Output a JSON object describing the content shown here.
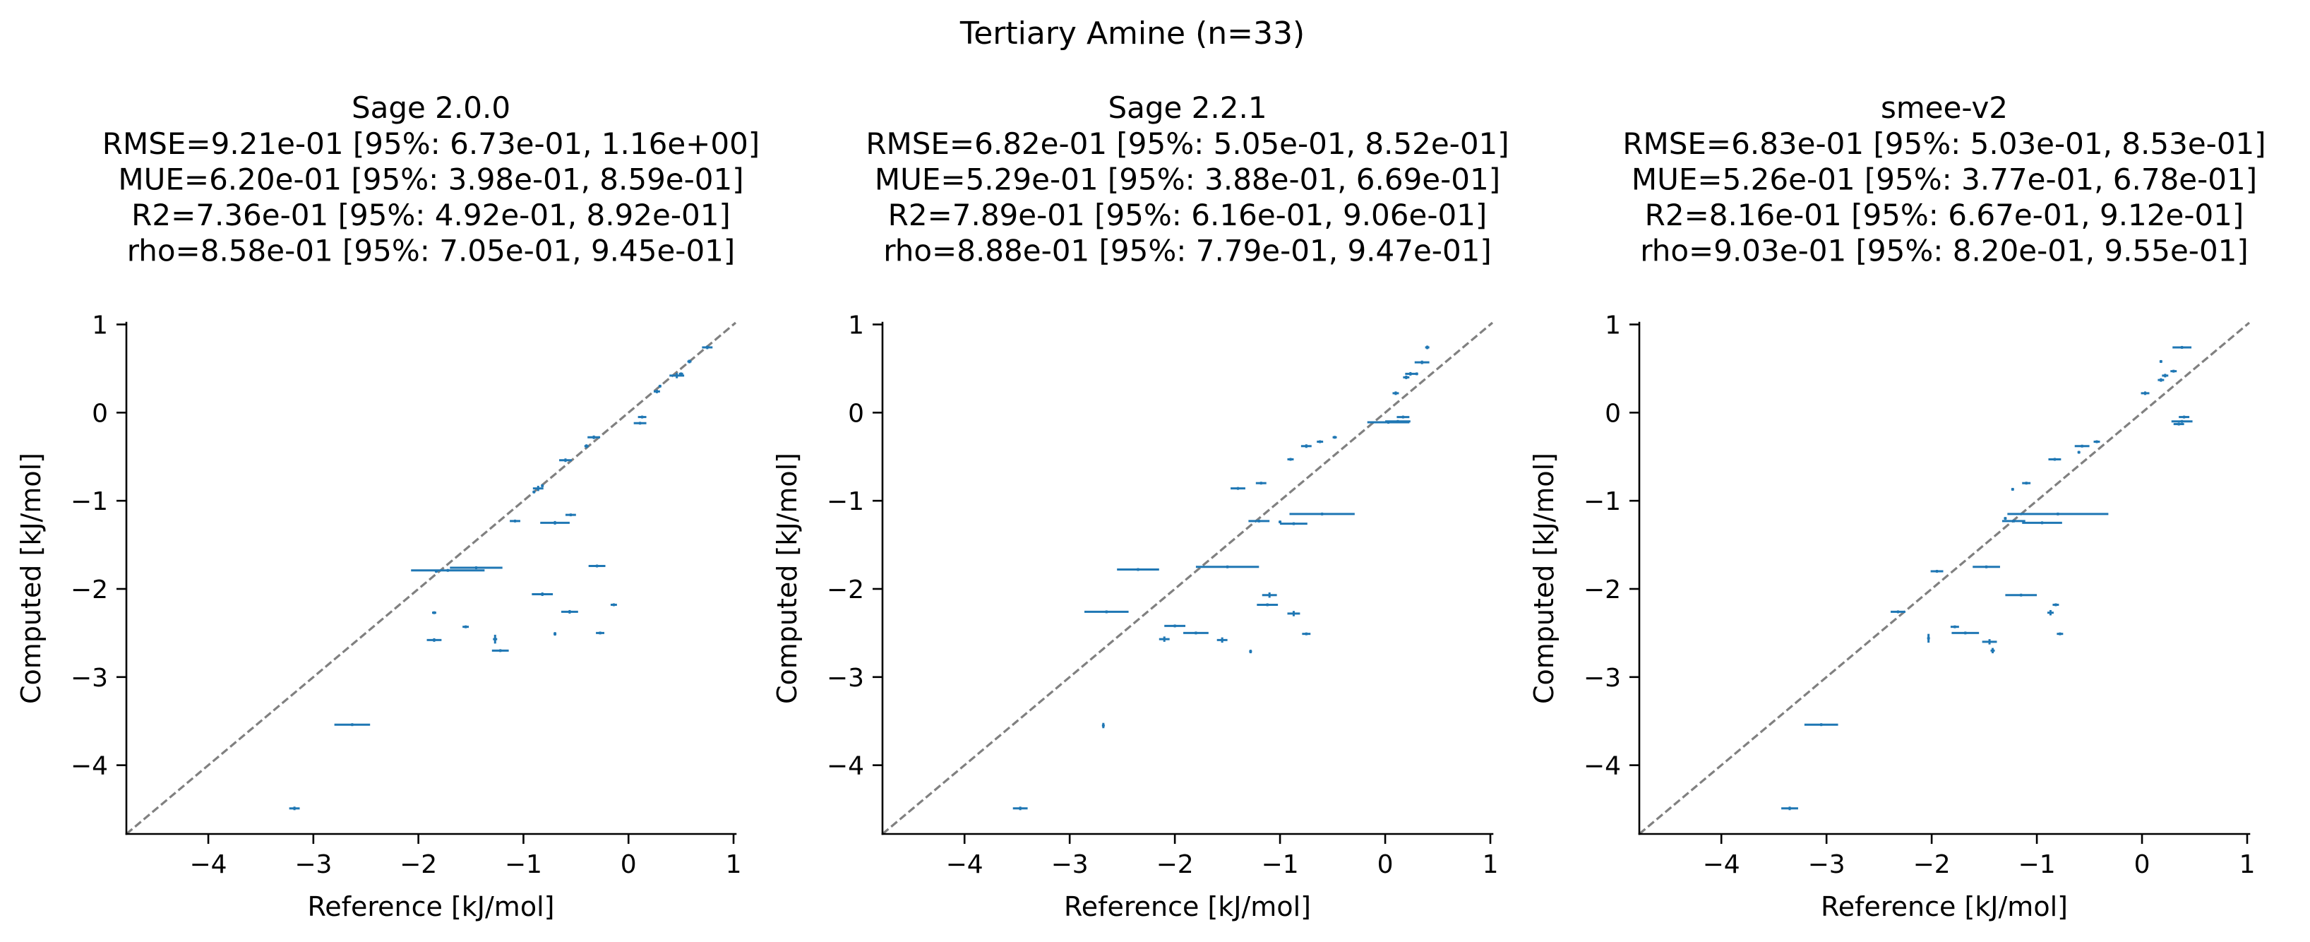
{
  "figure": {
    "suptitle": "Tertiary Amine (n=33)"
  },
  "colors": {
    "series": "#1f77b4",
    "identity_line": "#808080",
    "axis": "#000000"
  },
  "chart_data": [
    {
      "type": "scatter",
      "title": "Sage 2.0.0",
      "stats": [
        "RMSE=9.21e-01 [95%: 6.73e-01, 1.16e+00]",
        "MUE=6.20e-01 [95%: 3.98e-01, 8.59e-01]",
        "R2=7.36e-01 [95%: 4.92e-01, 8.92e-01]",
        "rho=8.58e-01 [95%: 7.05e-01, 9.45e-01]"
      ],
      "xlabel": "Reference [kJ/mol]",
      "ylabel": "Computed [kJ/mol]",
      "xlim": [
        -4.78,
        1.02
      ],
      "ylim": [
        -4.78,
        1.02
      ],
      "xticks": [
        -4,
        -3,
        -2,
        -1,
        0,
        1
      ],
      "yticks": [
        -4,
        -3,
        -2,
        -1,
        0,
        1
      ],
      "identity_line": true,
      "points": [
        {
          "x": -3.18,
          "y": -4.49,
          "xerr": 0.05,
          "yerr": 0.02
        },
        {
          "x": -2.63,
          "y": -3.54,
          "xerr": 0.17,
          "yerr": 0.01
        },
        {
          "x": -1.72,
          "y": -1.79,
          "xerr": 0.35,
          "yerr": 0.01
        },
        {
          "x": -1.45,
          "y": -1.76,
          "xerr": 0.25,
          "yerr": 0.01
        },
        {
          "x": -1.85,
          "y": -2.58,
          "xerr": 0.07,
          "yerr": 0.02
        },
        {
          "x": -1.85,
          "y": -2.27,
          "xerr": 0.02,
          "yerr": 0.01
        },
        {
          "x": -1.55,
          "y": -2.43,
          "xerr": 0.03,
          "yerr": 0.01
        },
        {
          "x": -1.27,
          "y": -2.57,
          "xerr": 0.02,
          "yerr": 0.05
        },
        {
          "x": -1.22,
          "y": -2.7,
          "xerr": 0.08,
          "yerr": 0.01
        },
        {
          "x": -0.82,
          "y": -2.06,
          "xerr": 0.1,
          "yerr": 0.02
        },
        {
          "x": -0.7,
          "y": -2.51,
          "xerr": 0.01,
          "yerr": 0.02
        },
        {
          "x": -0.56,
          "y": -2.26,
          "xerr": 0.08,
          "yerr": 0.02
        },
        {
          "x": -0.27,
          "y": -2.5,
          "xerr": 0.04,
          "yerr": 0.01
        },
        {
          "x": -0.14,
          "y": -2.18,
          "xerr": 0.03,
          "yerr": 0.01
        },
        {
          "x": -0.3,
          "y": -1.74,
          "xerr": 0.08,
          "yerr": 0.01
        },
        {
          "x": -0.55,
          "y": -1.16,
          "xerr": 0.05,
          "yerr": 0.01
        },
        {
          "x": -0.7,
          "y": -1.25,
          "xerr": 0.14,
          "yerr": 0.02
        },
        {
          "x": -1.08,
          "y": -1.23,
          "xerr": 0.05,
          "yerr": 0.01
        },
        {
          "x": -0.86,
          "y": -0.86,
          "xerr": 0.05,
          "yerr": 0.03
        },
        {
          "x": -0.6,
          "y": -0.54,
          "xerr": 0.06,
          "yerr": 0.02
        },
        {
          "x": -0.33,
          "y": -0.28,
          "xerr": 0.06,
          "yerr": 0.02
        },
        {
          "x": -0.4,
          "y": -0.38,
          "xerr": 0.02,
          "yerr": 0.02
        },
        {
          "x": 0.11,
          "y": -0.12,
          "xerr": 0.06,
          "yerr": 0.01
        },
        {
          "x": 0.13,
          "y": -0.05,
          "xerr": 0.04,
          "yerr": 0.01
        },
        {
          "x": 0.27,
          "y": 0.24,
          "xerr": 0.03,
          "yerr": 0.02
        },
        {
          "x": 0.46,
          "y": 0.42,
          "xerr": 0.07,
          "yerr": 0.03
        },
        {
          "x": 0.58,
          "y": 0.58,
          "xerr": 0.02,
          "yerr": 0.02
        },
        {
          "x": 0.75,
          "y": 0.74,
          "xerr": 0.05,
          "yerr": 0.02
        },
        {
          "x": 0.5,
          "y": 0.44,
          "xerr": 0.02,
          "yerr": 0.01
        },
        {
          "x": -1.83,
          "y": -1.8,
          "xerr": 0.01,
          "yerr": 0.01
        },
        {
          "x": -0.9,
          "y": -0.9,
          "xerr": 0.01,
          "yerr": 0.01
        },
        {
          "x": -0.82,
          "y": -0.83,
          "xerr": 0.01,
          "yerr": 0.01
        },
        {
          "x": 0.3,
          "y": 0.3,
          "xerr": 0.01,
          "yerr": 0.01
        }
      ]
    },
    {
      "type": "scatter",
      "title": "Sage 2.2.1",
      "stats": [
        "RMSE=6.82e-01 [95%: 5.05e-01, 8.52e-01]",
        "MUE=5.29e-01 [95%: 3.88e-01, 6.69e-01]",
        "R2=7.89e-01 [95%: 6.16e-01, 9.06e-01]",
        "rho=8.88e-01 [95%: 7.79e-01, 9.47e-01]"
      ],
      "xlabel": "Reference [kJ/mol]",
      "ylabel": "Computed [kJ/mol]",
      "xlim": [
        -4.78,
        1.02
      ],
      "ylim": [
        -4.78,
        1.02
      ],
      "xticks": [
        -4,
        -3,
        -2,
        -1,
        0,
        1
      ],
      "yticks": [
        -4,
        -3,
        -2,
        -1,
        0,
        1
      ],
      "identity_line": true,
      "points": [
        {
          "x": -3.47,
          "y": -4.49,
          "xerr": 0.07,
          "yerr": 0.02
        },
        {
          "x": -2.68,
          "y": -3.55,
          "xerr": 0.01,
          "yerr": 0.03
        },
        {
          "x": -2.65,
          "y": -2.26,
          "xerr": 0.21,
          "yerr": 0.01
        },
        {
          "x": -2.35,
          "y": -1.78,
          "xerr": 0.2,
          "yerr": 0.01
        },
        {
          "x": -2.1,
          "y": -2.57,
          "xerr": 0.05,
          "yerr": 0.03
        },
        {
          "x": -2.0,
          "y": -2.42,
          "xerr": 0.1,
          "yerr": 0.01
        },
        {
          "x": -1.8,
          "y": -2.5,
          "xerr": 0.12,
          "yerr": 0.01
        },
        {
          "x": -1.5,
          "y": -1.75,
          "xerr": 0.3,
          "yerr": 0.01
        },
        {
          "x": -1.55,
          "y": -2.58,
          "xerr": 0.05,
          "yerr": 0.03
        },
        {
          "x": -1.28,
          "y": -2.71,
          "xerr": 0.01,
          "yerr": 0.02
        },
        {
          "x": -1.1,
          "y": -2.07,
          "xerr": 0.07,
          "yerr": 0.03
        },
        {
          "x": -1.12,
          "y": -2.18,
          "xerr": 0.1,
          "yerr": 0.01
        },
        {
          "x": -0.87,
          "y": -2.28,
          "xerr": 0.06,
          "yerr": 0.03
        },
        {
          "x": -0.75,
          "y": -2.51,
          "xerr": 0.04,
          "yerr": 0.01
        },
        {
          "x": -0.87,
          "y": -1.26,
          "xerr": 0.13,
          "yerr": 0.01
        },
        {
          "x": -0.6,
          "y": -1.15,
          "xerr": 0.31,
          "yerr": 0.01
        },
        {
          "x": -1.2,
          "y": -1.23,
          "xerr": 0.1,
          "yerr": 0.01
        },
        {
          "x": -1.4,
          "y": -0.86,
          "xerr": 0.07,
          "yerr": 0.01
        },
        {
          "x": -1.18,
          "y": -0.8,
          "xerr": 0.05,
          "yerr": 0.01
        },
        {
          "x": -0.9,
          "y": -0.53,
          "xerr": 0.03,
          "yerr": 0.01
        },
        {
          "x": -0.75,
          "y": -0.38,
          "xerr": 0.05,
          "yerr": 0.02
        },
        {
          "x": -0.62,
          "y": -0.33,
          "xerr": 0.03,
          "yerr": 0.01
        },
        {
          "x": -0.48,
          "y": -0.28,
          "xerr": 0.02,
          "yerr": 0.01
        },
        {
          "x": 0.03,
          "y": -0.11,
          "xerr": 0.2,
          "yerr": 0.01
        },
        {
          "x": 0.12,
          "y": -0.1,
          "xerr": 0.12,
          "yerr": 0.01
        },
        {
          "x": 0.17,
          "y": -0.05,
          "xerr": 0.06,
          "yerr": 0.01
        },
        {
          "x": 0.1,
          "y": 0.22,
          "xerr": 0.03,
          "yerr": 0.02
        },
        {
          "x": 0.2,
          "y": 0.4,
          "xerr": 0.03,
          "yerr": 0.02
        },
        {
          "x": 0.24,
          "y": 0.44,
          "xerr": 0.05,
          "yerr": 0.02
        },
        {
          "x": 0.35,
          "y": 0.57,
          "xerr": 0.07,
          "yerr": 0.02
        },
        {
          "x": 0.4,
          "y": 0.74,
          "xerr": 0.02,
          "yerr": 0.02
        },
        {
          "x": -1.0,
          "y": -1.24,
          "xerr": 0.01,
          "yerr": 0.01
        },
        {
          "x": 0.3,
          "y": 0.44,
          "xerr": 0.01,
          "yerr": 0.01
        }
      ]
    },
    {
      "type": "scatter",
      "title": "smee-v2",
      "stats": [
        "RMSE=6.83e-01 [95%: 5.03e-01, 8.53e-01]",
        "MUE=5.26e-01 [95%: 3.77e-01, 6.78e-01]",
        "R2=8.16e-01 [95%: 6.67e-01, 9.12e-01]",
        "rho=9.03e-01 [95%: 8.20e-01, 9.55e-01]"
      ],
      "xlabel": "Reference [kJ/mol]",
      "ylabel": "Computed [kJ/mol]",
      "xlim": [
        -4.78,
        1.02
      ],
      "ylim": [
        -4.78,
        1.02
      ],
      "xticks": [
        -4,
        -3,
        -2,
        -1,
        0,
        1
      ],
      "yticks": [
        -4,
        -3,
        -2,
        -1,
        0,
        1
      ],
      "identity_line": true,
      "points": [
        {
          "x": -3.35,
          "y": -4.49,
          "xerr": 0.08,
          "yerr": 0.02
        },
        {
          "x": -3.05,
          "y": -3.54,
          "xerr": 0.16,
          "yerr": 0.01
        },
        {
          "x": -2.32,
          "y": -2.26,
          "xerr": 0.07,
          "yerr": 0.01
        },
        {
          "x": -2.03,
          "y": -2.56,
          "xerr": 0.01,
          "yerr": 0.05
        },
        {
          "x": -1.95,
          "y": -1.8,
          "xerr": 0.06,
          "yerr": 0.01
        },
        {
          "x": -1.78,
          "y": -2.43,
          "xerr": 0.04,
          "yerr": 0.01
        },
        {
          "x": -1.68,
          "y": -2.5,
          "xerr": 0.13,
          "yerr": 0.01
        },
        {
          "x": -1.48,
          "y": -1.75,
          "xerr": 0.13,
          "yerr": 0.01
        },
        {
          "x": -1.45,
          "y": -2.6,
          "xerr": 0.07,
          "yerr": 0.03
        },
        {
          "x": -1.42,
          "y": -2.7,
          "xerr": 0.02,
          "yerr": 0.03
        },
        {
          "x": -1.15,
          "y": -2.07,
          "xerr": 0.15,
          "yerr": 0.01
        },
        {
          "x": -0.87,
          "y": -2.27,
          "xerr": 0.03,
          "yerr": 0.03
        },
        {
          "x": -0.82,
          "y": -2.18,
          "xerr": 0.03,
          "yerr": 0.01
        },
        {
          "x": -0.78,
          "y": -2.51,
          "xerr": 0.03,
          "yerr": 0.01
        },
        {
          "x": -0.95,
          "y": -1.25,
          "xerr": 0.19,
          "yerr": 0.01
        },
        {
          "x": -0.8,
          "y": -1.15,
          "xerr": 0.48,
          "yerr": 0.01
        },
        {
          "x": -1.22,
          "y": -1.23,
          "xerr": 0.11,
          "yerr": 0.01
        },
        {
          "x": -1.23,
          "y": -0.87,
          "xerr": 0.01,
          "yerr": 0.01
        },
        {
          "x": -1.1,
          "y": -0.8,
          "xerr": 0.04,
          "yerr": 0.01
        },
        {
          "x": -0.83,
          "y": -0.53,
          "xerr": 0.06,
          "yerr": 0.01
        },
        {
          "x": -0.57,
          "y": -0.38,
          "xerr": 0.07,
          "yerr": 0.01
        },
        {
          "x": -0.43,
          "y": -0.33,
          "xerr": 0.03,
          "yerr": 0.01
        },
        {
          "x": 0.38,
          "y": -0.1,
          "xerr": 0.1,
          "yerr": 0.01
        },
        {
          "x": 0.4,
          "y": -0.05,
          "xerr": 0.05,
          "yerr": 0.01
        },
        {
          "x": 0.35,
          "y": -0.13,
          "xerr": 0.05,
          "yerr": 0.01
        },
        {
          "x": 0.03,
          "y": 0.22,
          "xerr": 0.04,
          "yerr": 0.02
        },
        {
          "x": 0.18,
          "y": 0.37,
          "xerr": 0.03,
          "yerr": 0.02
        },
        {
          "x": 0.22,
          "y": 0.42,
          "xerr": 0.03,
          "yerr": 0.02
        },
        {
          "x": 0.18,
          "y": 0.58,
          "xerr": 0.01,
          "yerr": 0.01
        },
        {
          "x": 0.38,
          "y": 0.74,
          "xerr": 0.09,
          "yerr": 0.01
        },
        {
          "x": 0.3,
          "y": 0.47,
          "xerr": 0.03,
          "yerr": 0.01
        },
        {
          "x": -1.3,
          "y": -1.2,
          "xerr": 0.01,
          "yerr": 0.01
        },
        {
          "x": -0.6,
          "y": -0.45,
          "xerr": 0.01,
          "yerr": 0.01
        }
      ]
    }
  ]
}
